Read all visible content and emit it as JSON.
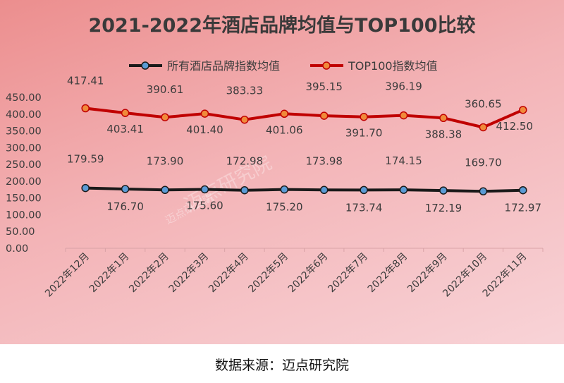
{
  "chart_data": {
    "type": "line",
    "title": "2021-2022年酒店品牌均值与TOP100比较",
    "categories": [
      "2022年12月",
      "2022年1月",
      "2022年2月",
      "2022年3月",
      "2022年4月",
      "2022年5月",
      "2022年6月",
      "2022年7月",
      "2022年8月",
      "2022年9月",
      "2022年10月",
      "2022年11月"
    ],
    "series": [
      {
        "name": "所有酒店品牌指数均值",
        "color": "#1a1a1a",
        "marker_color": "#5b9bd5",
        "values": [
          179.59,
          176.7,
          173.9,
          175.6,
          172.98,
          175.2,
          173.98,
          173.74,
          174.15,
          172.19,
          169.7,
          172.97
        ],
        "labels": [
          "179.59",
          "176.70",
          "173.90",
          "175.60",
          "172.98",
          "175.20",
          "173.98",
          "173.74",
          "174.15",
          "172.19",
          "169.70",
          "172.97"
        ]
      },
      {
        "name": "TOP100指数均值",
        "color": "#c00000",
        "marker_color": "#f08a3a",
        "values": [
          417.41,
          403.41,
          390.61,
          401.4,
          383.33,
          401.06,
          395.15,
          391.7,
          396.19,
          388.38,
          360.65,
          412.5
        ],
        "labels": [
          "417.41",
          "403.41",
          "390.61",
          "401.40",
          "383.33",
          "401.06",
          "395.15",
          "391.70",
          "396.19",
          "388.38",
          "360.65",
          "412.50"
        ]
      }
    ],
    "ylim": [
      0,
      450
    ],
    "yticks": [
      "0.00",
      "50.00",
      "100.00",
      "150.00",
      "200.00",
      "250.00",
      "300.00",
      "350.00",
      "400.00",
      "450.00"
    ],
    "xlabel": "",
    "ylabel": "",
    "grid": false,
    "legend": "top"
  },
  "watermark": {
    "text": "迈点研究院",
    "small": "迈点研究院"
  },
  "source": "数据来源：迈点研究院"
}
